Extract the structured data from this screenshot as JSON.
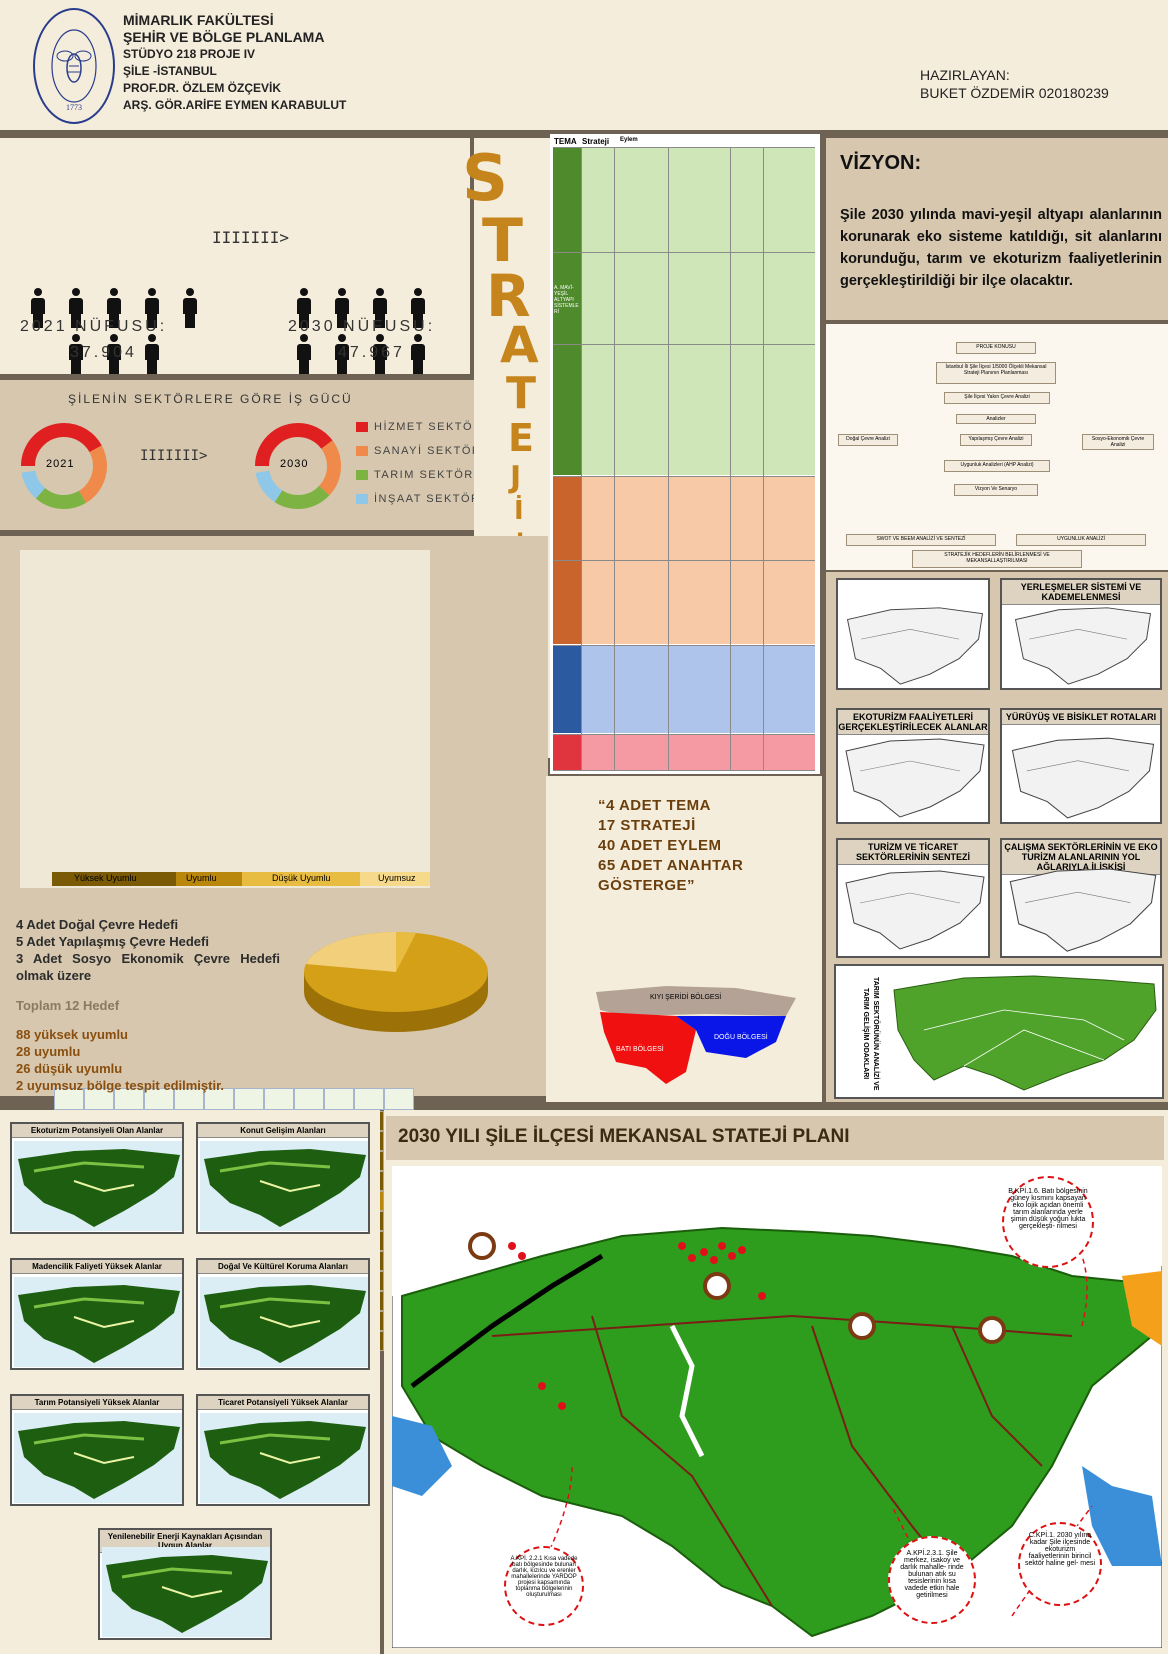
{
  "header": {
    "faculty": "MİMARLIK FAKÜLTESİ",
    "department": "ŞEHİR VE BÖLGE PLANLAMA",
    "studio": "STÜDYO 218 PROJE IV",
    "location": "ŞİLE -İSTANBUL",
    "advisor1": "PROF.DR. ÖZLEM ÖZÇEVİK",
    "advisor2": "ARŞ. GÖR.ARİFE EYMEN KARABULUT",
    "prepared_by_label": "HAZIRLAYAN:",
    "prepared_by": "BUKET ÖZDEMİR 020180239",
    "logo_text": "İSTANBUL TEKNİK ÜNİVERSİTESİ",
    "logo_year": "1773"
  },
  "population": {
    "arrow": "IIIIIII>",
    "label_2021": "2021 NÜFUSU:",
    "value_2021": "37.904",
    "label_2030": "2030 NÜFUSU:",
    "value_2030": "47.967"
  },
  "workforce": {
    "title": "ŞİLENİN SEKTÖRLERE GÖRE İŞ GÜCÜ",
    "year1": "2021",
    "year2": "2030",
    "arrow": "IIIIIII>",
    "legend": [
      {
        "label": "HİZMET SEKTÖRÜ",
        "color": "#e02020"
      },
      {
        "label": "SANAYİ SEKTÖRÜ",
        "color": "#ef8a4a"
      },
      {
        "label": "TARIM SEKTÖRÜ",
        "color": "#7cb342"
      },
      {
        "label": "İNŞAAT SEKTÖRÜ",
        "color": "#8fc7e8"
      }
    ]
  },
  "stratejiler_word": "STRATEJİLER",
  "strategy_table": {
    "headers": [
      "TEMA",
      "Strateji",
      "Eylem"
    ],
    "theme_colors": [
      "#4f8a2d",
      "#c8642c",
      "#2c5aa0",
      "#e0353f"
    ],
    "theme1_label": "A. MAVİ-YEŞİL ALTYAPI SİSTEMLERİ"
  },
  "vision": {
    "title": "VİZYON:",
    "text": "Şile 2030 yılında mavi-yeşil altyapı alanlarının korunarak eko sisteme katıldığı, sit alanlarını korunduğu, tarım ve ekoturizm faaliyetlerinin gerçekleştirildiği bir ilçe olacaktır."
  },
  "flowchart": {
    "nodes": [
      "PROJE KONUSU",
      "İstanbul İli Şile İlçesi 1/5000 Ölçekli Mekansal Strateji Planının Planlanması",
      "Şile İlçesi Yakın Çevre Analizi",
      "Analizler",
      "Doğal Çevre Analizi",
      "Yapılaşmış Çevre Analizi",
      "Sosyo-Ekonomik Çevre Analizi",
      "Uygunluk Analizleri (AHP Analizi)",
      "Vizyon Ve Senaryo",
      "SWOT VE BEEM ANALİZİ VE SENTEZİ",
      "UYGUNLUK ANALİZİ",
      "STRATEJİK HEDEFLERİN BELİRLENMESİ VE MEKANSALLAŞTIRILMASI"
    ]
  },
  "matrix": {
    "legend": [
      "Yüksek Uyumlu",
      "Uyumlu",
      "Düşük Uyumlu",
      "Uyumsuz"
    ],
    "legend_colors": [
      "#7a5a05",
      "#b9870c",
      "#e8bb41",
      "#f7d98b"
    ]
  },
  "summary": {
    "line1": "4 Adet Doğal Çevre Hedefi",
    "line2": "5 Adet Yapılaşmış Çevre Hedefi",
    "line3": "3 Adet Sosyo Ekonomik Çevre Hedefi olmak üzere",
    "total": "Toplam 12 Hedef",
    "stat1": "88 yüksek uyumlu",
    "stat2": "28 uyumlu",
    "stat3": "26 düşük uyumlu",
    "stat4": "2 uyumsuz bölge tespit edilmiştir."
  },
  "counts": {
    "l1": "“4 ADET TEMA",
    "l2": "17 STRATEJİ",
    "l3": "40 ADET EYLEM",
    "l4": "65 ADET ANAHTAR",
    "l5": "GÖSTERGE”"
  },
  "regions": {
    "kiyi": "KIYI ŞERİDİ BÖLGESİ",
    "bati": "BATI BÖLGESİ",
    "dogu": "DOĞU BÖLGESİ"
  },
  "small_maps": [
    {
      "title": "YERLEŞMELER SİSTEMİ VE KADEMELENMESİ"
    },
    {
      "title": "EKOTURİZM FAALİYETLERİ GERÇEKLEŞTİRİLECEK ALANLAR"
    },
    {
      "title": "YÜRÜYÜŞ VE BİSİKLET ROTALARI"
    },
    {
      "title": "TURİZM VE TİCARET SEKTÖRLERİNİN SENTEZİ"
    },
    {
      "title": "ÇALIŞMA SEKTÖRLERİNİN VE EKO TURİZM ALANLARININ YOL AĞLARIYLA İLİŞKİSİ"
    }
  ],
  "vertical_label": "TARIM SEKTÖRÜNÜN ANALİZİ VE TARIM GELİŞİM ODAKLARI",
  "suitability_maps": [
    {
      "title": "Ekoturizm Potansiyeli Olan Alanlar"
    },
    {
      "title": "Konut Gelişim Alanları"
    },
    {
      "title": "Madencilik Faliyeti Yüksek Alanlar"
    },
    {
      "title": "Doğal Ve Kültürel Koruma Alanları"
    },
    {
      "title": "Tarım Potansiyeli Yüksek Alanlar"
    },
    {
      "title": "Ticaret Potansiyeli Yüksek Alanlar"
    },
    {
      "title": "Yenilenebilir Enerji Kaynakları Açısından Uygun Alanlar"
    }
  ],
  "main_plan": {
    "title": "2030 YILI ŞİLE İLÇESİ MEKANSAL STATEJİ PLANI",
    "note_top": "B.KPİ.1.6. Batı bölgesinin güney kısmını kapsayan eko lojik açıdan önemli tarım alanlarında yerle şimin düşük yoğun lukta gerçekleşti- rilmesi",
    "note_left": "A.KPİ. 2.2.1 Kısa vadede batı bölgesinde bulunan darlık, kızılcu ve erenler mahallelerinde YARDOP projesi kapsamında toplanma bölgelerinin oluşturulması",
    "note_mid": "A.KPİ.2.3.1. Şile merkez, isakoy ve darlık mahalle- rinde bulunan atık su tesislerinin kısa vadede etkin hale getirilmesi",
    "note_right": "C.KPİ.1. 2030 yılına kadar Şile ilçesinde ekoturizm faaliyetlerinin birincil sektör haline gel- mesi"
  }
}
